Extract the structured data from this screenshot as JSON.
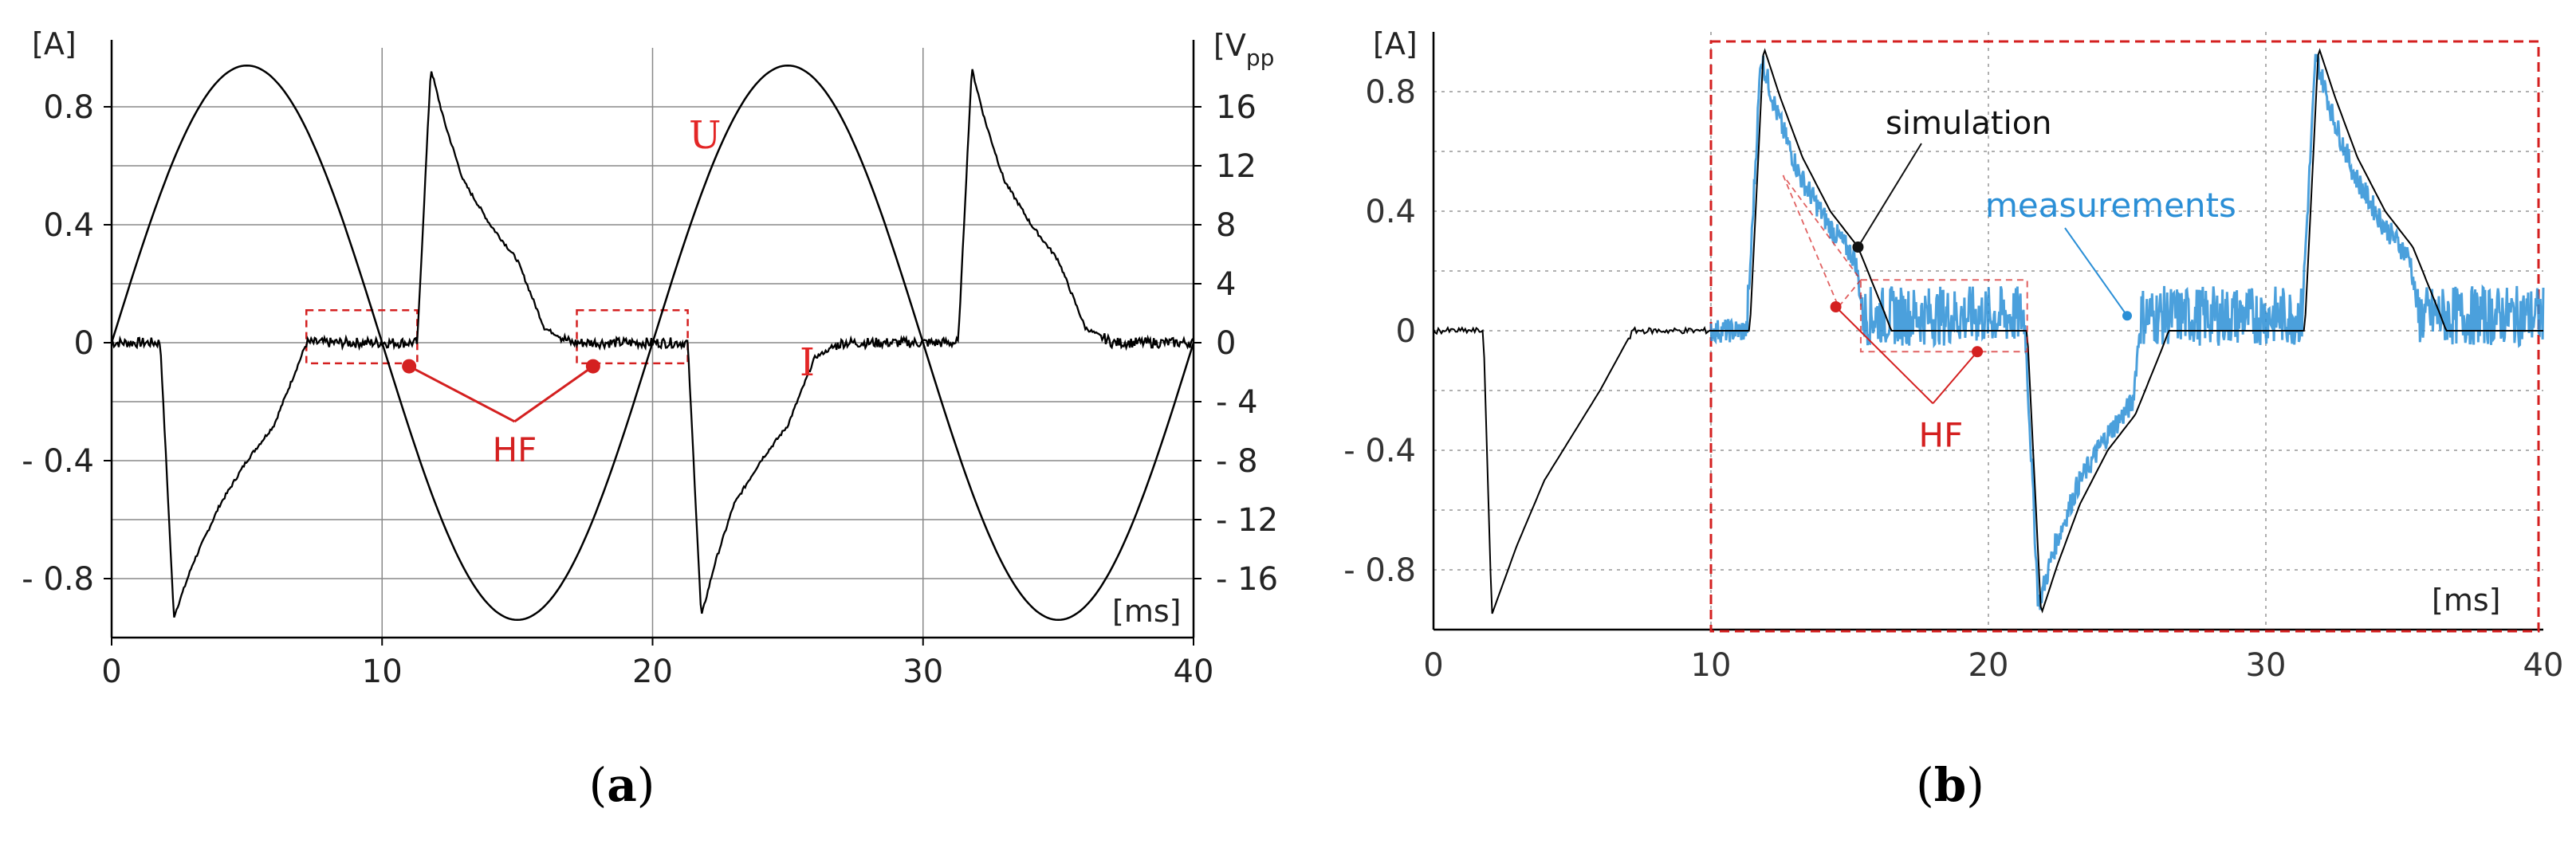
{
  "colors": {
    "trace": "#000000",
    "annotation_red": "#d42020",
    "measurement_blue": "#2b8fd6",
    "grid_a": "#888888",
    "grid_b": "#b0b0b0"
  },
  "chart_data": [
    {
      "panel": "a",
      "type": "line",
      "caption_open": "(",
      "caption_letter": "a",
      "caption_close": ")",
      "left_axis_unit": "[A]",
      "right_axis_unit": "[V",
      "right_axis_unit_sub": "pp",
      "x_unit": "[ms]",
      "xlim": [
        0,
        40
      ],
      "ylim_left": [
        -1.0,
        1.0
      ],
      "ylim_right": [
        -20,
        20
      ],
      "x_ticks": [
        0,
        10,
        20,
        30,
        40
      ],
      "x_tick_labels": [
        "0",
        "10",
        "20",
        "30",
        "40"
      ],
      "y_left_ticks": [
        0.8,
        0.4,
        0,
        -0.4,
        -0.8
      ],
      "y_left_tick_labels": [
        "0.8",
        "0.4",
        "0",
        "- 0.4",
        "- 0.8"
      ],
      "y_right_ticks": [
        16,
        12,
        8,
        4,
        0,
        -4,
        -8,
        -12,
        -16
      ],
      "y_right_tick_labels": [
        "16",
        "12",
        "8",
        "4",
        "0",
        "- 4",
        "- 8",
        "- 12",
        "- 16"
      ],
      "grid": true,
      "series": [
        {
          "name": "U",
          "label": "U",
          "axis": "right",
          "description": "sinusoidal voltage, 50 Hz, ~19 Vpp amplitude",
          "amplitude": 18.8,
          "period_ms": 20
        },
        {
          "name": "I",
          "label": "I",
          "axis": "left",
          "x": [
            0,
            1.8,
            2.3,
            3.0,
            4.0,
            5.0,
            6.0,
            7.0,
            7.2,
            11.3,
            11.8,
            12.3,
            13.0,
            14.0,
            15.0,
            16.0,
            17.0,
            17.2,
            21.3,
            21.8,
            22.3,
            23.0,
            24.0,
            25.0,
            26.0,
            27.0,
            27.2,
            31.3,
            31.8,
            32.3,
            33.0,
            34.0,
            35.0,
            36.0,
            37.0,
            37.2,
            40.0
          ],
          "values": [
            0,
            0,
            -0.93,
            -0.75,
            -0.55,
            -0.4,
            -0.28,
            -0.05,
            0,
            0,
            0.93,
            0.75,
            0.55,
            0.4,
            0.28,
            0.05,
            0,
            0,
            0,
            -0.93,
            -0.75,
            -0.55,
            -0.4,
            -0.28,
            -0.05,
            0,
            0,
            0,
            0.93,
            0.75,
            0.55,
            0.4,
            0.28,
            0.05,
            0,
            0,
            0
          ]
        }
      ],
      "annotations": [
        {
          "label": "HF",
          "points_x": [
            11.0,
            17.8
          ],
          "points_y": [
            -0.08,
            -0.08
          ],
          "text_x": 14.9,
          "text_y": -0.37
        },
        {
          "label": "",
          "box_x": [
            7.2,
            11.3
          ],
          "box_y": [
            -0.07,
            0.11
          ]
        },
        {
          "label": "",
          "box_x": [
            17.2,
            21.3
          ],
          "box_y": [
            -0.07,
            0.11
          ]
        }
      ]
    },
    {
      "panel": "b",
      "type": "line",
      "caption_open": "(",
      "caption_letter": "b",
      "caption_close": ")",
      "left_axis_unit": "[A]",
      "x_unit": "[ms]",
      "xlim": [
        0,
        40
      ],
      "ylim": [
        -1.0,
        1.0
      ],
      "x_ticks": [
        0,
        10,
        20,
        30,
        40
      ],
      "x_tick_labels": [
        "0",
        "10",
        "20",
        "30",
        "40"
      ],
      "y_ticks": [
        0.8,
        0.4,
        0,
        -0.4,
        -0.8
      ],
      "y_tick_labels": [
        "0.8",
        "0.4",
        "0",
        "- 0.4",
        "- 0.8"
      ],
      "grid": true,
      "series": [
        {
          "name": "simulation",
          "label": "simulation",
          "x": [
            0,
            1.8,
            2.1,
            3.0,
            4.0,
            5.0,
            6.0,
            7.0,
            7.2,
            11.4,
            11.9,
            12.5,
            13.3,
            14.3,
            15.3,
            16.3,
            16.5,
            21.4,
            21.9,
            22.5,
            23.3,
            24.3,
            25.3,
            26.3,
            26.5,
            31.4,
            31.9,
            32.5,
            33.3,
            34.3,
            35.3,
            36.3,
            36.5,
            40.0
          ],
          "values": [
            0,
            0,
            -0.95,
            -0.72,
            -0.5,
            -0.35,
            -0.2,
            -0.03,
            0,
            0,
            0.95,
            0.78,
            0.58,
            0.4,
            0.28,
            0.05,
            0,
            0,
            -0.95,
            -0.78,
            -0.58,
            -0.4,
            -0.28,
            -0.05,
            0,
            0,
            0.95,
            0.78,
            0.58,
            0.4,
            0.28,
            0.05,
            0,
            0
          ]
        },
        {
          "name": "measurements",
          "label": "measurements",
          "x": [
            10.0,
            11.3,
            11.8,
            12.4,
            13.2,
            14.2,
            15.2,
            15.5,
            21.3,
            21.8,
            22.4,
            23.2,
            24.2,
            25.2,
            25.5,
            31.3,
            31.8,
            32.4,
            33.2,
            34.2,
            35.2,
            35.5,
            40.0
          ],
          "values": [
            0,
            0,
            0.92,
            0.72,
            0.52,
            0.36,
            0.24,
            0.05,
            0.05,
            -0.92,
            -0.72,
            -0.52,
            -0.36,
            -0.24,
            0.05,
            0.05,
            0.92,
            0.72,
            0.52,
            0.36,
            0.24,
            0.05,
            0.05
          ]
        }
      ],
      "annotations": [
        {
          "label": "HF",
          "points_x": [
            14.5,
            19.6
          ],
          "points_y": [
            0.08,
            -0.07
          ],
          "text_x": 18.0,
          "text_y": -0.35
        },
        {
          "label": "",
          "box_x": [
            15.4,
            21.4
          ],
          "box_y": [
            -0.07,
            0.17
          ]
        },
        {
          "label": "",
          "region_x": [
            10.0,
            40.0
          ],
          "region_y": [
            -1.0,
            1.0
          ]
        }
      ]
    }
  ]
}
